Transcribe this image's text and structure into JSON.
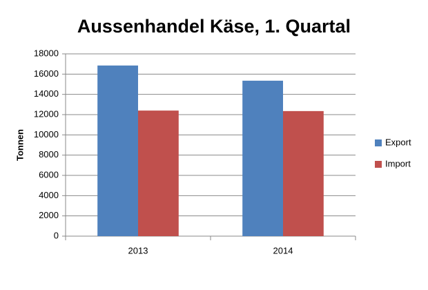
{
  "chart_data": {
    "type": "bar",
    "title": "Aussenhandel Käse, 1. Quartal",
    "y_label": "Tonnen",
    "categories": [
      "2013",
      "2014"
    ],
    "series": [
      {
        "name": "Export",
        "color": "#4f81bd",
        "values": [
          16850,
          15350
        ]
      },
      {
        "name": "Import",
        "color": "#c0504d",
        "values": [
          12400,
          12350
        ]
      }
    ],
    "ylim": [
      0,
      18000
    ],
    "yticks": [
      0,
      2000,
      4000,
      6000,
      8000,
      10000,
      12000,
      14000,
      16000,
      18000
    ],
    "grid": true,
    "legend": "right"
  }
}
